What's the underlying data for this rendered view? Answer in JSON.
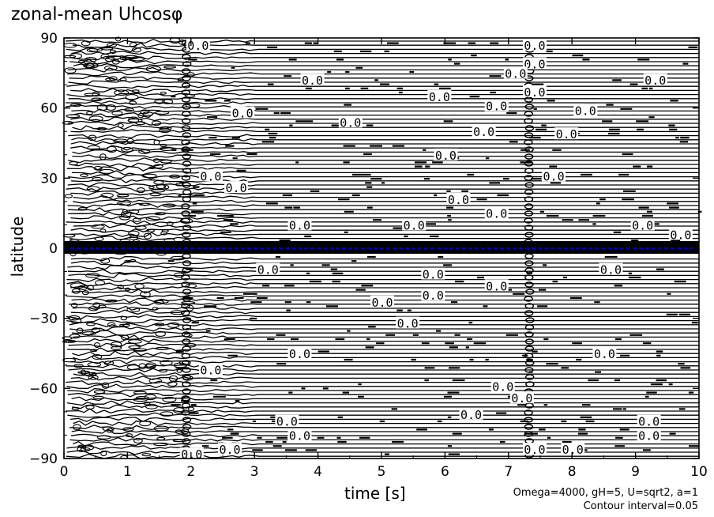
{
  "chart_data": {
    "type": "contour",
    "title": "zonal-mean Uhcosφ",
    "xlabel": "time [s]",
    "ylabel": "latitude",
    "xlim": [
      0,
      10
    ],
    "ylim": [
      -90,
      90
    ],
    "x_ticks": [
      "0",
      "1",
      "2",
      "3",
      "4",
      "5",
      "6",
      "7",
      "8",
      "9",
      "10"
    ],
    "y_ticks": [
      "90",
      "60",
      "30",
      "0",
      "−30",
      "−60",
      "−90"
    ],
    "y_tick_values": [
      90,
      60,
      30,
      0,
      -30,
      -60,
      -90
    ],
    "contour_label": "0.0",
    "contour_label_positions": [
      {
        "t": 2.1,
        "lat": 87
      },
      {
        "t": 7.4,
        "lat": 87
      },
      {
        "t": 7.4,
        "lat": 79
      },
      {
        "t": 7.1,
        "lat": 75
      },
      {
        "t": 3.9,
        "lat": 72
      },
      {
        "t": 9.3,
        "lat": 72
      },
      {
        "t": 5.9,
        "lat": 65
      },
      {
        "t": 6.8,
        "lat": 61
      },
      {
        "t": 7.4,
        "lat": 67
      },
      {
        "t": 2.8,
        "lat": 58
      },
      {
        "t": 8.2,
        "lat": 59
      },
      {
        "t": 4.5,
        "lat": 54
      },
      {
        "t": 6.6,
        "lat": 50
      },
      {
        "t": 7.9,
        "lat": 49
      },
      {
        "t": 6.0,
        "lat": 40
      },
      {
        "t": 2.3,
        "lat": 31
      },
      {
        "t": 7.7,
        "lat": 31
      },
      {
        "t": 2.7,
        "lat": 26
      },
      {
        "t": 6.2,
        "lat": 21
      },
      {
        "t": 6.8,
        "lat": 15
      },
      {
        "t": 3.7,
        "lat": 10
      },
      {
        "t": 5.5,
        "lat": 10
      },
      {
        "t": 9.1,
        "lat": 10
      },
      {
        "t": 9.7,
        "lat": 6
      },
      {
        "t": 3.2,
        "lat": -9
      },
      {
        "t": 5.8,
        "lat": -11
      },
      {
        "t": 8.6,
        "lat": -9
      },
      {
        "t": 6.8,
        "lat": -16
      },
      {
        "t": 5.0,
        "lat": -23
      },
      {
        "t": 5.8,
        "lat": -20
      },
      {
        "t": 5.4,
        "lat": -32
      },
      {
        "t": 3.7,
        "lat": -45
      },
      {
        "t": 8.5,
        "lat": -45
      },
      {
        "t": 2.3,
        "lat": -52
      },
      {
        "t": 6.9,
        "lat": -59
      },
      {
        "t": 7.2,
        "lat": -64
      },
      {
        "t": 6.4,
        "lat": -71
      },
      {
        "t": 3.5,
        "lat": -74
      },
      {
        "t": 9.2,
        "lat": -74
      },
      {
        "t": 3.7,
        "lat": -80
      },
      {
        "t": 9.2,
        "lat": -80
      },
      {
        "t": 2.6,
        "lat": -86
      },
      {
        "t": 8.0,
        "lat": -86
      },
      {
        "t": 2.0,
        "lat": -88
      },
      {
        "t": 7.4,
        "lat": -86
      }
    ],
    "series_color": "#0000ff",
    "annotations": [
      "Omega=4000, gH=5, U=sqrt2, a=1",
      "Contour interval=0.05"
    ],
    "grid": false
  }
}
